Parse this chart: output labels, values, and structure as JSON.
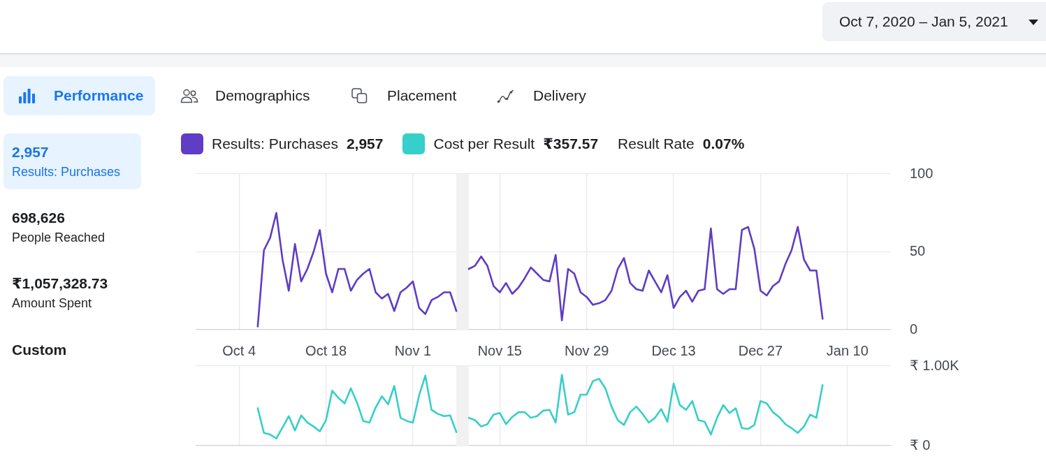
{
  "chart_data": [
    {
      "type": "other",
      "annotations": [
        "Oct 7, 2020 – Jan 5, 2021",
        "Performance",
        "Demographics",
        "Placement",
        "Delivery",
        "2,957",
        "Results: Purchases",
        "698,626",
        "People Reached",
        "₹1,057,328.73",
        "Amount Spent",
        "Custom",
        "Result Rate",
        "0.07%"
      ]
    },
    {
      "type": "line",
      "x": [
        "2020-10-07",
        "2020-10-08",
        "2020-10-09",
        "2020-10-10",
        "2020-10-11",
        "2020-10-12",
        "2020-10-13",
        "2020-10-14",
        "2020-10-15",
        "2020-10-16",
        "2020-10-17",
        "2020-10-18",
        "2020-10-19",
        "2020-10-20",
        "2020-10-21",
        "2020-10-22",
        "2020-10-23",
        "2020-10-24",
        "2020-10-25",
        "2020-10-26",
        "2020-10-27",
        "2020-10-28",
        "2020-10-29",
        "2020-10-30",
        "2020-10-31",
        "2020-11-01",
        "2020-11-02",
        "2020-11-03",
        "2020-11-04",
        "2020-11-05",
        "2020-11-06",
        "2020-11-07",
        "2020-11-08",
        "2020-11-09",
        "2020-11-10",
        "2020-11-11",
        "2020-11-12",
        "2020-11-13",
        "2020-11-14",
        "2020-11-15",
        "2020-11-16",
        "2020-11-17",
        "2020-11-18",
        "2020-11-19",
        "2020-11-20",
        "2020-11-21",
        "2020-11-22",
        "2020-11-23",
        "2020-11-24",
        "2020-11-25",
        "2020-11-26",
        "2020-11-27",
        "2020-11-28",
        "2020-11-29",
        "2020-11-30",
        "2020-12-01",
        "2020-12-02",
        "2020-12-03",
        "2020-12-04",
        "2020-12-05",
        "2020-12-06",
        "2020-12-07",
        "2020-12-08",
        "2020-12-09",
        "2020-12-10",
        "2020-12-11",
        "2020-12-12",
        "2020-12-13",
        "2020-12-14",
        "2020-12-15",
        "2020-12-16",
        "2020-12-17",
        "2020-12-18",
        "2020-12-19",
        "2020-12-20",
        "2020-12-21",
        "2020-12-22",
        "2020-12-23",
        "2020-12-24",
        "2020-12-25",
        "2020-12-26",
        "2020-12-27",
        "2020-12-28",
        "2020-12-29",
        "2020-12-30",
        "2020-12-31",
        "2021-01-01",
        "2021-01-02",
        "2021-01-03",
        "2021-01-04",
        "2021-01-05",
        "2021-01-06"
      ],
      "series": [
        {
          "name": "Results: Purchases",
          "color": "#5f3dc4",
          "values": [
            2,
            51,
            59,
            75,
            45,
            25,
            55,
            31,
            39,
            50,
            64,
            36,
            24,
            39,
            39,
            25,
            32,
            36,
            39,
            24,
            20,
            23,
            12,
            24,
            27,
            31,
            14,
            10,
            19,
            21,
            24,
            24,
            12,
            null,
            39,
            41,
            47,
            41,
            28,
            24,
            30,
            23,
            27,
            33,
            40,
            36,
            32,
            31,
            48,
            6,
            39,
            36,
            24,
            21,
            16,
            17,
            19,
            25,
            39,
            46,
            30,
            26,
            25,
            38,
            31,
            24,
            35,
            14,
            21,
            25,
            18,
            25,
            26,
            65,
            26,
            23,
            26,
            26,
            64,
            66,
            52,
            25,
            22,
            28,
            31,
            42,
            51,
            66,
            45,
            38,
            38,
            7
          ]
        }
      ],
      "xlim": [
        "2020-09-27",
        "2021-01-17"
      ],
      "xticks": [
        {
          "value": "2020-10-04",
          "label": "Oct 4"
        },
        {
          "value": "2020-10-18",
          "label": "Oct 18"
        },
        {
          "value": "2020-11-01",
          "label": "Nov 1"
        },
        {
          "value": "2020-11-15",
          "label": "Nov 15"
        },
        {
          "value": "2020-11-29",
          "label": "Nov 29"
        },
        {
          "value": "2020-12-13",
          "label": "Dec 13"
        },
        {
          "value": "2020-12-27",
          "label": "Dec 27"
        },
        {
          "value": "2021-01-10",
          "label": "Jan 10"
        }
      ],
      "ylim": [
        0,
        100
      ],
      "yticks": [
        0,
        50,
        100
      ],
      "grid": true,
      "legend": "top",
      "bands": [
        {
          "axis": "x",
          "from": "2020-11-08",
          "to": "2020-11-10",
          "color": "#f1f1f1"
        }
      ],
      "annotations": [
        "2,957"
      ]
    },
    {
      "type": "line",
      "x": [
        "2020-10-07",
        "2020-10-08",
        "2020-10-09",
        "2020-10-10",
        "2020-10-11",
        "2020-10-12",
        "2020-10-13",
        "2020-10-14",
        "2020-10-15",
        "2020-10-16",
        "2020-10-17",
        "2020-10-18",
        "2020-10-19",
        "2020-10-20",
        "2020-10-21",
        "2020-10-22",
        "2020-10-23",
        "2020-10-24",
        "2020-10-25",
        "2020-10-26",
        "2020-10-27",
        "2020-10-28",
        "2020-10-29",
        "2020-10-30",
        "2020-10-31",
        "2020-11-01",
        "2020-11-02",
        "2020-11-03",
        "2020-11-04",
        "2020-11-05",
        "2020-11-06",
        "2020-11-07",
        "2020-11-08",
        "2020-11-09",
        "2020-11-10",
        "2020-11-11",
        "2020-11-12",
        "2020-11-13",
        "2020-11-14",
        "2020-11-15",
        "2020-11-16",
        "2020-11-17",
        "2020-11-18",
        "2020-11-19",
        "2020-11-20",
        "2020-11-21",
        "2020-11-22",
        "2020-11-23",
        "2020-11-24",
        "2020-11-25",
        "2020-11-26",
        "2020-11-27",
        "2020-11-28",
        "2020-11-29",
        "2020-11-30",
        "2020-12-01",
        "2020-12-02",
        "2020-12-03",
        "2020-12-04",
        "2020-12-05",
        "2020-12-06",
        "2020-12-07",
        "2020-12-08",
        "2020-12-09",
        "2020-12-10",
        "2020-12-11",
        "2020-12-12",
        "2020-12-13",
        "2020-12-14",
        "2020-12-15",
        "2020-12-16",
        "2020-12-17",
        "2020-12-18",
        "2020-12-19",
        "2020-12-20",
        "2020-12-21",
        "2020-12-22",
        "2020-12-23",
        "2020-12-24",
        "2020-12-25",
        "2020-12-26",
        "2020-12-27",
        "2020-12-28",
        "2020-12-29",
        "2020-12-30",
        "2020-12-31",
        "2021-01-01",
        "2021-01-02",
        "2021-01-03",
        "2021-01-04",
        "2021-01-05",
        "2021-01-06"
      ],
      "series": [
        {
          "name": "Cost per Result",
          "color": "#36cfc9",
          "values": [
            470,
            160,
            140,
            90,
            230,
            370,
            190,
            380,
            290,
            240,
            180,
            320,
            690,
            600,
            530,
            720,
            540,
            310,
            290,
            480,
            620,
            520,
            750,
            350,
            310,
            290,
            630,
            880,
            450,
            400,
            370,
            380,
            170,
            null,
            350,
            320,
            240,
            270,
            390,
            410,
            270,
            360,
            420,
            420,
            350,
            370,
            440,
            450,
            290,
            890,
            390,
            420,
            640,
            640,
            810,
            840,
            720,
            490,
            320,
            260,
            420,
            490,
            400,
            290,
            350,
            460,
            300,
            780,
            510,
            450,
            560,
            320,
            300,
            140,
            350,
            510,
            410,
            470,
            220,
            210,
            260,
            560,
            530,
            420,
            360,
            270,
            220,
            160,
            240,
            390,
            350,
            760
          ]
        }
      ],
      "xlim": [
        "2020-09-27",
        "2021-01-17"
      ],
      "xticks": [
        {
          "value": "2020-10-04",
          "label": null
        },
        {
          "value": "2020-10-18",
          "label": null
        },
        {
          "value": "2020-11-01",
          "label": null
        },
        {
          "value": "2020-11-15",
          "label": null
        },
        {
          "value": "2020-11-29",
          "label": null
        },
        {
          "value": "2020-12-13",
          "label": null
        },
        {
          "value": "2020-12-27",
          "label": null
        },
        {
          "value": "2021-01-10",
          "label": null
        }
      ],
      "ylim": [
        0,
        1000
      ],
      "yticks": [
        {
          "value": 0,
          "label": "₹ 0"
        },
        {
          "value": 1000,
          "label": "₹ 1.00K"
        }
      ],
      "grid": true,
      "legend": "top",
      "tick_labels": "y",
      "bands": [
        {
          "axis": "x",
          "from": "2020-11-08",
          "to": "2020-11-10",
          "color": "#f1f1f1"
        }
      ],
      "annotations": [
        "₹357.57"
      ]
    }
  ]
}
